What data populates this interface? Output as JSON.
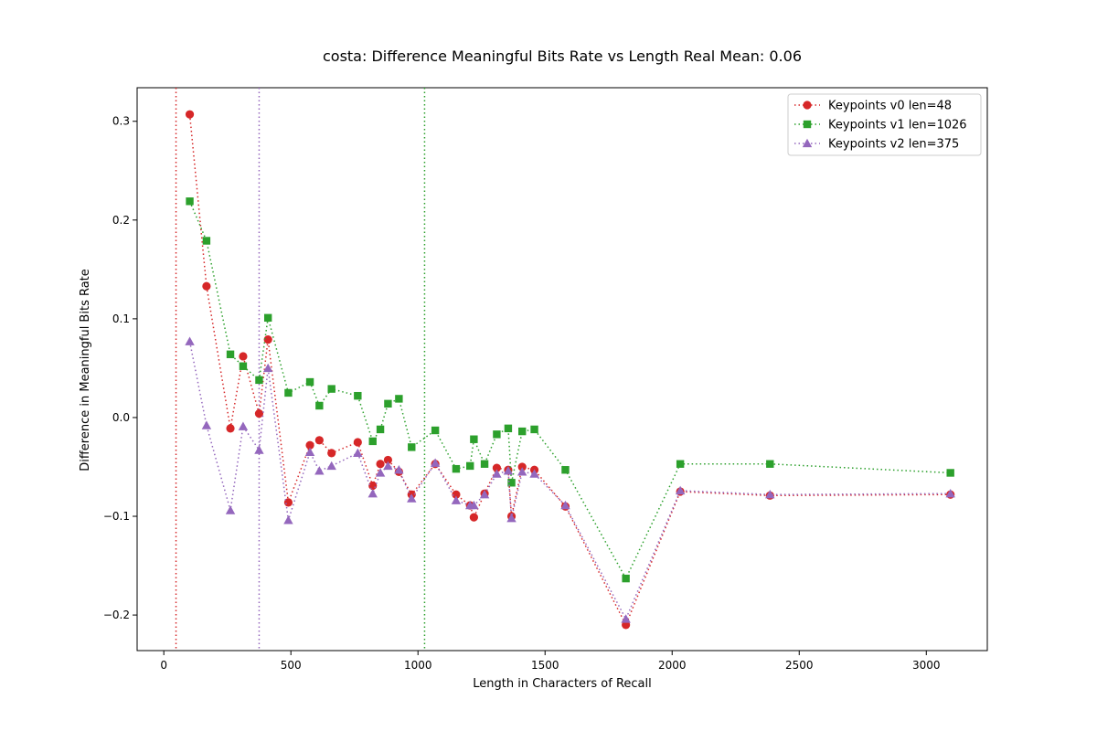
{
  "chart_data": {
    "type": "line",
    "title": "costa: Difference Meaningful Bits Rate vs Length Real Mean: 0.06",
    "xlabel": "Length in Characters of Recall",
    "ylabel": "Difference in Meaningful Bits Rate",
    "xlim": [
      -105,
      3240
    ],
    "ylim": [
      -0.236,
      0.334
    ],
    "xticks": [
      0,
      500,
      1000,
      1500,
      2000,
      2500,
      3000
    ],
    "yticks": [
      -0.2,
      -0.1,
      0.0,
      0.1,
      0.2,
      0.3
    ],
    "xtick_labels": [
      "0",
      "500",
      "1000",
      "1500",
      "2000",
      "2500",
      "3000"
    ],
    "ytick_labels": [
      "−0.2",
      "−0.1",
      "0.0",
      "0.1",
      "0.2",
      "0.3"
    ],
    "grid": false,
    "legend_position": "top-right",
    "vlines": [
      {
        "x": 48,
        "color": "#d62728"
      },
      {
        "x": 375,
        "color": "#9467bd"
      },
      {
        "x": 1026,
        "color": "#2ca02c"
      }
    ],
    "series": [
      {
        "name": "Keypoints v0 len=48",
        "color": "#d62728",
        "marker": "circle",
        "x": [
          102,
          168,
          262,
          312,
          375,
          410,
          490,
          575,
          612,
          660,
          763,
          822,
          852,
          882,
          925,
          975,
          1068,
          1150,
          1205,
          1220,
          1262,
          1310,
          1355,
          1368,
          1410,
          1458,
          1580,
          1818,
          2032,
          2385,
          3095
        ],
        "y": [
          0.307,
          0.133,
          -0.011,
          0.062,
          0.004,
          0.079,
          -0.086,
          -0.028,
          -0.023,
          -0.036,
          -0.025,
          -0.069,
          -0.047,
          -0.043,
          -0.055,
          -0.078,
          -0.047,
          -0.078,
          -0.089,
          -0.101,
          -0.077,
          -0.051,
          -0.053,
          -0.1,
          -0.05,
          -0.053,
          -0.09,
          -0.21,
          -0.075,
          -0.079,
          -0.078
        ]
      },
      {
        "name": "Keypoints v1 len=1026",
        "color": "#2ca02c",
        "marker": "square",
        "x": [
          102,
          168,
          262,
          312,
          375,
          410,
          490,
          575,
          612,
          660,
          763,
          822,
          852,
          882,
          925,
          975,
          1068,
          1150,
          1205,
          1220,
          1262,
          1310,
          1355,
          1368,
          1410,
          1458,
          1580,
          1818,
          2032,
          2385,
          3095
        ],
        "y": [
          0.219,
          0.179,
          0.064,
          0.052,
          0.038,
          0.101,
          0.025,
          0.036,
          0.012,
          0.029,
          0.022,
          -0.024,
          -0.012,
          0.014,
          0.019,
          -0.03,
          -0.013,
          -0.052,
          -0.049,
          -0.022,
          -0.047,
          -0.017,
          -0.011,
          -0.066,
          -0.014,
          -0.012,
          -0.053,
          -0.163,
          -0.047,
          -0.047,
          -0.056
        ]
      },
      {
        "name": "Keypoints v2 len=375",
        "color": "#9467bd",
        "marker": "triangle",
        "x": [
          102,
          168,
          262,
          312,
          375,
          410,
          490,
          575,
          612,
          660,
          763,
          822,
          852,
          882,
          925,
          975,
          1068,
          1150,
          1205,
          1220,
          1262,
          1310,
          1355,
          1368,
          1410,
          1458,
          1580,
          1818,
          2032,
          2385,
          3095
        ],
        "y": [
          0.077,
          -0.008,
          -0.094,
          -0.009,
          -0.033,
          0.05,
          -0.104,
          -0.035,
          -0.054,
          -0.049,
          -0.036,
          -0.077,
          -0.056,
          -0.049,
          -0.053,
          -0.082,
          -0.046,
          -0.084,
          -0.089,
          -0.089,
          -0.078,
          -0.057,
          -0.054,
          -0.102,
          -0.055,
          -0.057,
          -0.089,
          -0.204,
          -0.074,
          -0.078,
          -0.077
        ]
      }
    ]
  }
}
